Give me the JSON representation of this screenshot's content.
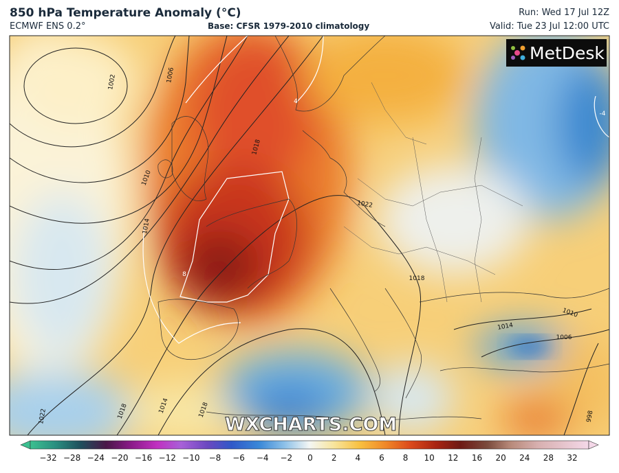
{
  "header": {
    "title": "850 hPa Temperature Anomaly (°C)",
    "model": "ECMWF ENS 0.2°",
    "base": "Base: CFSR 1979-2010 climatology",
    "run": "Run: Wed 17 Jul 12Z",
    "valid": "Valid: Tue 23 Jul 12:00 UTC"
  },
  "logo": "MetDesk",
  "watermark": "WXCHARTS.COM",
  "contour_labels": [
    "1002",
    "1006",
    "1010",
    "1014",
    "1018",
    "1022",
    "1018",
    "1014",
    "1010",
    "1006",
    "1022",
    "1018",
    "1014",
    "1018",
    "998",
    "4",
    "8",
    "-4"
  ],
  "colorbar": {
    "labels": [
      "−32",
      "−28",
      "−24",
      "−20",
      "−16",
      "−12",
      "−10",
      "−8",
      "−6",
      "−4",
      "−2",
      "0",
      "2",
      "4",
      "6",
      "8",
      "10",
      "12",
      "16",
      "20",
      "24",
      "28",
      "32"
    ]
  }
}
